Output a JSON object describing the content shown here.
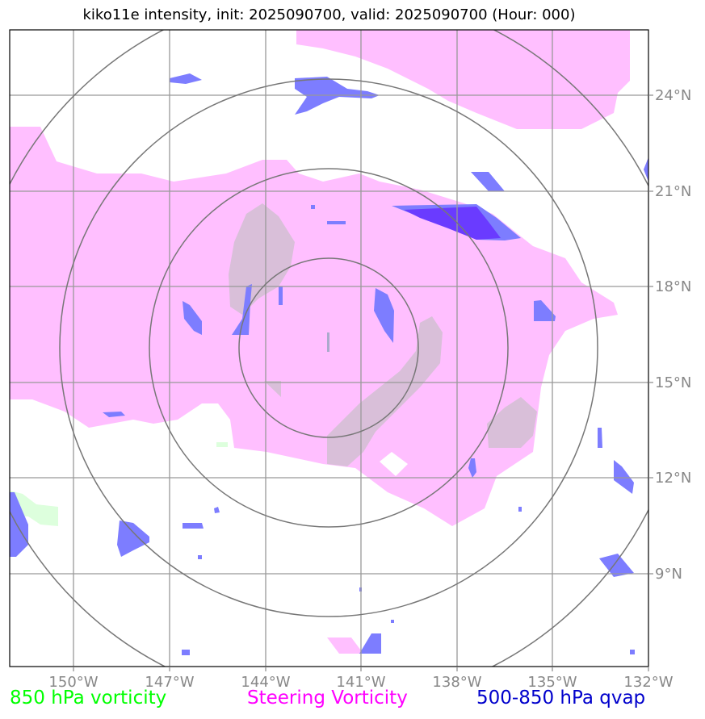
{
  "title": "kiko11e intensity, init: 2025090700, valid: 2025090700 (Hour: 000)",
  "lon_labels": [
    "150°W",
    "147°W",
    "144°W",
    "141°W",
    "138°W",
    "135°W",
    "132°W"
  ],
  "lat_labels": [
    "24°N",
    "21°N",
    "18°N",
    "15°N",
    "12°N",
    "9°N"
  ],
  "legend": {
    "vort850": {
      "label": "850 hPa vorticity",
      "color": "#00ff00"
    },
    "steering": {
      "label": "Steering Vorticity",
      "color": "#ff00ff"
    },
    "qvap": {
      "label": "500-850 hPa qvap",
      "color": "#0000cc"
    }
  },
  "colors": {
    "steering_fill": "#ffbfff",
    "steering_core": "#d9bfd9",
    "qvap_fill": "#7d7dff",
    "qvap_core": "#6a3bff",
    "vort_fill": "#ddffdd",
    "grid": "#999999",
    "rings": "#777777"
  }
}
